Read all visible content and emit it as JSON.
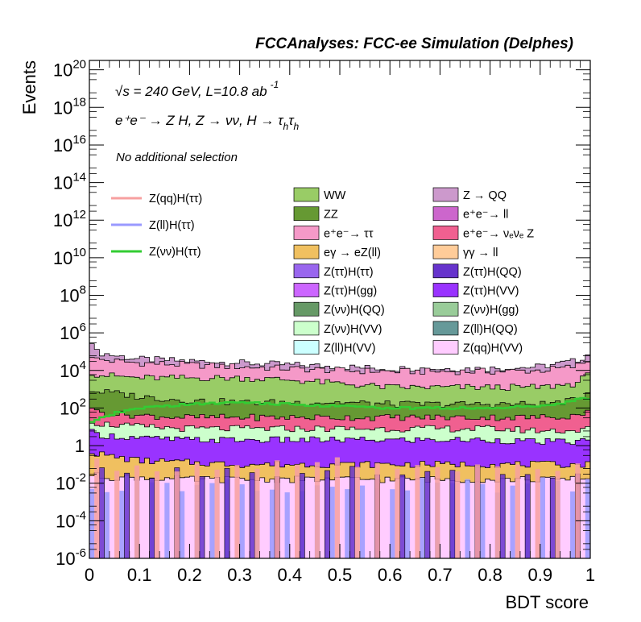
{
  "chart_data": {
    "type": "histogram",
    "title": "FCCAnalyses: FCC-ee Simulation (Delphes)",
    "annotations": {
      "energy": "√s = 240 GeV, L=10.8 ab",
      "energy_exp": "-1",
      "process_main": "e⁺e⁻ → Z H, Z → νν, H → τ",
      "process_sub1": "h",
      "process_mid": "τ",
      "process_sub2": "h",
      "selection": "No additional selection"
    },
    "xlabel": "BDT score",
    "ylabel": "Events",
    "xlim": [
      0,
      1
    ],
    "ylim_log10": [
      -6,
      20.5
    ],
    "y_scale": "log",
    "x_ticks": [
      "0",
      "0.1",
      "0.2",
      "0.3",
      "0.4",
      "0.5",
      "0.6",
      "0.7",
      "0.8",
      "0.9",
      "1"
    ],
    "y_ticks": [
      {
        "base": "10",
        "exp": "20"
      },
      {
        "base": "10",
        "exp": "18"
      },
      {
        "base": "10",
        "exp": "16"
      },
      {
        "base": "10",
        "exp": "14"
      },
      {
        "base": "10",
        "exp": "12"
      },
      {
        "base": "10",
        "exp": "10"
      },
      {
        "base": "10",
        "exp": "8"
      },
      {
        "base": "10",
        "exp": "6"
      },
      {
        "base": "10",
        "exp": "4"
      },
      {
        "base": "10",
        "exp": "2"
      },
      {
        "base": "1",
        "exp": ""
      },
      {
        "base": "10",
        "exp": "-2"
      },
      {
        "base": "10",
        "exp": "-4"
      },
      {
        "base": "10",
        "exp": "-6"
      }
    ],
    "signal_series": [
      {
        "name": "Z(qq)H(ττ)",
        "color": "#f7a0a0"
      },
      {
        "name": "Z(ll)H(ττ)",
        "color": "#9999ff"
      },
      {
        "name": "Z(νν)H(ττ)",
        "color": "#33cc33"
      }
    ],
    "background_legend_left": [
      {
        "name": "WW",
        "color": "#99cc66"
      },
      {
        "name": "ZZ",
        "color": "#669933"
      },
      {
        "name": "e⁺e⁻→ ττ",
        "color": "#f599c8"
      },
      {
        "name": "eγ → eZ(ll)",
        "color": "#f0c060"
      },
      {
        "name": "Z(ττ)H(ττ)",
        "color": "#9966ee"
      },
      {
        "name": "Z(ττ)H(gg)",
        "color": "#cc66ff"
      },
      {
        "name": "Z(νν)H(QQ)",
        "color": "#669966"
      },
      {
        "name": "Z(νν)H(VV)",
        "color": "#ccffcc"
      },
      {
        "name": "Z(ll)H(VV)",
        "color": "#ccffff"
      }
    ],
    "background_legend_right": [
      {
        "name": "Z → QQ",
        "color": "#cc99cc"
      },
      {
        "name": "e⁺e⁻→ ll",
        "color": "#cc66cc"
      },
      {
        "name": "e⁺e⁻→ νₑνₑ Z",
        "color": "#f06090"
      },
      {
        "name": "γγ → ll",
        "color": "#ffcc99"
      },
      {
        "name": "Z(ττ)H(QQ)",
        "color": "#6633cc"
      },
      {
        "name": "Z(ττ)H(VV)",
        "color": "#9933ff"
      },
      {
        "name": "Z(νν)H(gg)",
        "color": "#99cc99"
      },
      {
        "name": "Z(ll)H(QQ)",
        "color": "#669999"
      },
      {
        "name": "Z(qq)H(VV)",
        "color": "#ffccff"
      }
    ],
    "stack_profile_log10": {
      "x": [
        0.0,
        0.01,
        0.05,
        0.1,
        0.2,
        0.3,
        0.4,
        0.5,
        0.6,
        0.7,
        0.8,
        0.9,
        0.97,
        1.0
      ],
      "bands": [
        {
          "name": "Z → QQ",
          "top": [
            6.2,
            5.0,
            4.8,
            4.6,
            4.5,
            4.4,
            4.3,
            4.2,
            4.1,
            4.1,
            4.1,
            4.2,
            4.5,
            4.9
          ]
        },
        {
          "name": "e⁺e⁻→ ττ",
          "top": [
            5.0,
            4.6,
            4.5,
            4.4,
            4.3,
            4.2,
            4.1,
            4.0,
            3.95,
            3.95,
            3.95,
            4.0,
            4.2,
            4.6
          ]
        },
        {
          "name": "WW",
          "top": [
            4.0,
            3.8,
            3.7,
            3.6,
            3.6,
            3.6,
            3.5,
            3.3,
            3.1,
            3.1,
            3.1,
            3.1,
            3.3,
            3.8
          ]
        },
        {
          "name": "ZZ",
          "top": [
            3.0,
            2.9,
            2.8,
            2.6,
            2.4,
            2.3,
            2.3,
            2.3,
            2.2,
            2.2,
            2.2,
            2.2,
            2.4,
            2.9
          ]
        },
        {
          "name": "e⁺e⁻→ νₑνₑ Z",
          "top": [
            2.4,
            1.8,
            1.7,
            1.6,
            1.5,
            1.5,
            1.5,
            1.5,
            1.5,
            1.5,
            1.5,
            1.5,
            1.6,
            1.9
          ]
        },
        {
          "name": "Z(νν)H(VV)",
          "top": [
            1.5,
            1.2,
            1.1,
            1.0,
            0.9,
            0.9,
            0.9,
            0.9,
            0.9,
            0.9,
            0.9,
            0.8,
            0.8,
            0.9
          ]
        },
        {
          "name": "Z(ττ)H(VV)",
          "top": [
            0.8,
            0.6,
            0.5,
            0.4,
            0.3,
            0.3,
            0.3,
            0.3,
            0.3,
            0.3,
            0.3,
            0.2,
            0.2,
            0.3
          ]
        },
        {
          "name": "eγ → eZ(ll)",
          "top": [
            -0.2,
            -0.4,
            -0.6,
            -0.8,
            -0.9,
            -1.0,
            -1.0,
            -1.0,
            -1.0,
            -1.0,
            -1.0,
            -1.0,
            -1.0,
            -1.0
          ]
        },
        {
          "name": "Z(qq)H(VV)",
          "top": [
            -1.5,
            -1.6,
            -1.7,
            -1.7,
            -1.8,
            -1.8,
            -1.8,
            -1.8,
            -1.8,
            -1.8,
            -1.8,
            -1.8,
            -1.8,
            -1.8
          ]
        }
      ]
    },
    "signal_line_log10": {
      "name": "Z(νν)H(ττ)",
      "x": [
        0.0,
        0.02,
        0.05,
        0.1,
        0.2,
        0.3,
        0.4,
        0.5,
        0.6,
        0.7,
        0.8,
        0.9,
        0.95,
        0.99,
        1.0
      ],
      "y": [
        1.2,
        1.4,
        1.7,
        2.0,
        2.2,
        2.3,
        2.2,
        2.1,
        2.0,
        2.0,
        2.0,
        2.1,
        2.3,
        2.6,
        2.3
      ]
    }
  }
}
